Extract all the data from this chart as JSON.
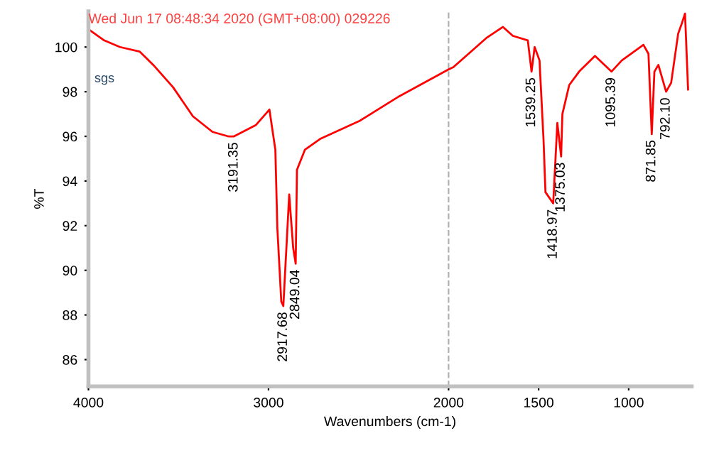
{
  "chart_data": {
    "type": "line",
    "xlabel": "Wavenumbers (cm-1)",
    "ylabel": "%T",
    "x": [
      4000,
      3913,
      3825,
      3716,
      3640,
      3530,
      3420,
      3311,
      3224,
      3191.35,
      3071,
      2995,
      2962,
      2951,
      2929,
      2917.68,
      2885,
      2863,
      2849.04,
      2842,
      2798,
      2710,
      2492,
      2273,
      2000,
      1973,
      1791,
      1698,
      1643,
      1560,
      1539.25,
      1522,
      1495,
      1473,
      1462,
      1418.97,
      1396,
      1375.03,
      1368,
      1330,
      1275,
      1187,
      1095.39,
      1038,
      918,
      890,
      871.85,
      857,
      835,
      792.1,
      764,
      725,
      703,
      687,
      670
    ],
    "series": [
      {
        "color": "#ff0000",
        "values": [
          100.8,
          100.3,
          100.0,
          99.8,
          99.2,
          98.2,
          96.9,
          96.2,
          96.0,
          96.0,
          96.5,
          97.2,
          95.4,
          91.9,
          88.6,
          88.4,
          93.4,
          91.0,
          90.3,
          94.5,
          95.4,
          95.9,
          96.7,
          97.8,
          99.0,
          99.1,
          100.4,
          100.9,
          100.5,
          100.3,
          98.9,
          100.0,
          99.4,
          95.9,
          93.5,
          93.0,
          96.6,
          95.1,
          97.0,
          98.3,
          98.9,
          99.6,
          98.9,
          99.4,
          100.1,
          99.7,
          96.1,
          98.9,
          99.2,
          98.0,
          98.4,
          100.6,
          101.1,
          101.5,
          98.1
        ]
      }
    ],
    "xlim": [
      4000,
      650
    ],
    "xticks": [
      {
        "value": 4000,
        "label": "4000"
      },
      {
        "value": 3000,
        "label": "3000"
      },
      {
        "value": 2000,
        "label": "2000"
      },
      {
        "value": 1500,
        "label": "1500"
      },
      {
        "value": 1000,
        "label": "1000"
      }
    ],
    "ylim": [
      84.8,
      101.6
    ],
    "yticks": [
      86,
      88,
      90,
      92,
      94,
      96,
      98,
      100
    ],
    "grid": false,
    "legend": false,
    "marker": "none",
    "line_style": "solid",
    "ref_lines": [
      {
        "axis": "x",
        "value": 2000,
        "color": "#b0b0b0",
        "line_style": "dashed"
      }
    ],
    "annotations": [
      "Wed Jun 17 08:48:34 2020 (GMT+08:00) 029226",
      "sgs",
      {
        "text": "3191.35",
        "x": 3191.35,
        "y": 96.0
      },
      {
        "text": "2917.68",
        "x": 2917.68,
        "y": 88.4
      },
      {
        "text": "2849.04",
        "x": 2849.04,
        "y": 90.3
      },
      {
        "text": "1539.25",
        "x": 1539.25,
        "y": 98.9
      },
      {
        "text": "1418.97",
        "x": 1418.97,
        "y": 93.0
      },
      {
        "text": "1375.03",
        "x": 1375.03,
        "y": 95.1
      },
      {
        "text": "1095.39",
        "x": 1095.39,
        "y": 98.9
      },
      {
        "text": "871.85",
        "x": 871.85,
        "y": 96.1
      },
      {
        "text": "792.10",
        "x": 792.1,
        "y": 98.0
      }
    ]
  }
}
